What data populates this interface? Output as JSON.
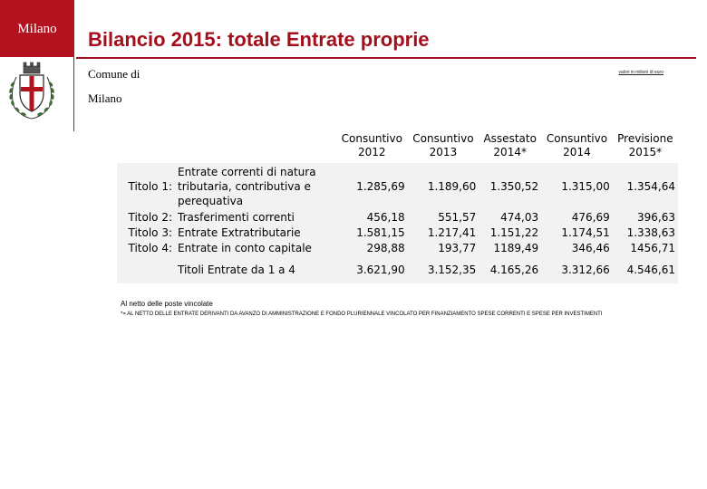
{
  "sidebar": {
    "city": "Milano"
  },
  "header": {
    "title": "Bilancio 2015: totale Entrate proprie",
    "comune_line1": "Comune di",
    "comune_line2": "Milano",
    "unit_note": "valori in milioni di euro"
  },
  "colors": {
    "accent": "#a30f1c",
    "sidebar_bg": "#b3121f",
    "table_bg": "#f2f2f2"
  },
  "icons": {
    "crest": "milano-crest-icon"
  },
  "table": {
    "headers": [
      {
        "line1": "Consuntivo",
        "line2": "2012"
      },
      {
        "line1": "Consuntivo",
        "line2": "2013"
      },
      {
        "line1": "Assestato",
        "line2": "2014*"
      },
      {
        "line1": "Consuntivo",
        "line2": "2014"
      },
      {
        "line1": "Previsione",
        "line2": "2015*"
      }
    ],
    "rows": [
      {
        "titolo": "Titolo 1:",
        "desc": "Entrate correnti di natura tributaria, contributiva e perequativa",
        "values": [
          "1.285,69",
          "1.189,60",
          "1.350,52",
          "1.315,00",
          "1.354,64"
        ]
      },
      {
        "titolo": "Titolo 2:",
        "desc": "Trasferimenti correnti",
        "values": [
          "456,18",
          "551,57",
          "474,03",
          "476,69",
          "396,63"
        ]
      },
      {
        "titolo": "Titolo 3:",
        "desc": "Entrate Extratributarie",
        "values": [
          "1.581,15",
          "1.217,41",
          "1.151,22",
          "1.174,51",
          "1.338,63"
        ]
      },
      {
        "titolo": "Titolo 4:",
        "desc": "Entrate in conto capitale",
        "values": [
          "298,88",
          "193,77",
          "1189,49",
          "346,46",
          "1456,71"
        ]
      }
    ],
    "total": {
      "label": "Titoli Entrate da 1 a 4",
      "values": [
        "3.621,90",
        "3.152,35",
        "4.165,26",
        "3.312,66",
        "4.546,61"
      ]
    }
  },
  "footnotes": {
    "line1": "Al netto delle poste vincolate",
    "line2": "*= AL NETTO DELLE ENTRATE DERIVANTI DA AVANZO DI AMMINISTRAZIONE E FONDO PLURIENNALE VINCOLATO PER FINANZIAMENTO SPESE CORRENTI E SPESE PER INVESTIMENTI"
  }
}
